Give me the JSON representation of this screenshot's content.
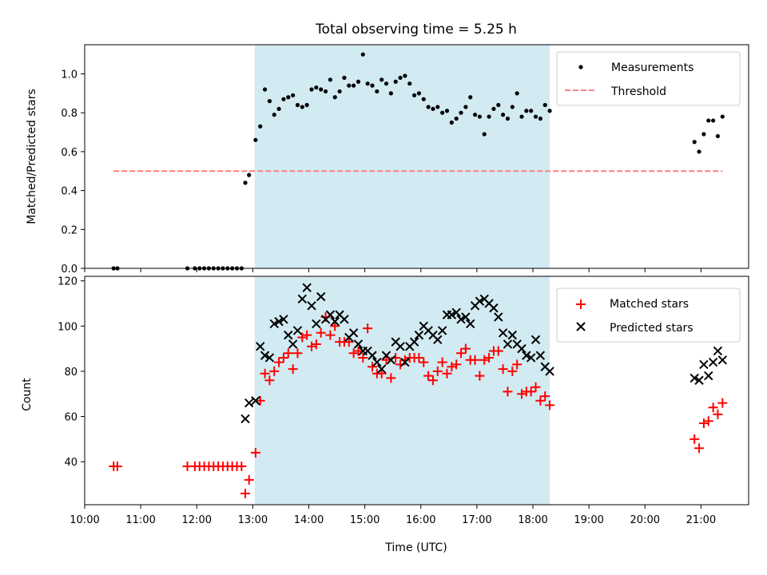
{
  "chart_data": [
    {
      "type": "scatter",
      "title": "Total observing time = 5.25 h",
      "xlabel": "",
      "ylabel": "Matched/Predicted stars",
      "xlim": [
        "10:00",
        "21:51"
      ],
      "ylim": [
        0,
        1.15
      ],
      "y_ticks": [
        "0.0",
        "0.2",
        "0.4",
        "0.6",
        "0.8",
        "1.0"
      ],
      "grid": false,
      "legend_position": "top-right",
      "observing_window": {
        "start": "13:02",
        "end": "18:18",
        "color": "#add8e6"
      },
      "series": [
        {
          "name": "Measurements",
          "marker": "dot",
          "color": "#000000",
          "points": [
            [
              "10:31",
              0.0
            ],
            [
              "10:35",
              0.0
            ],
            [
              "11:50",
              0.0
            ],
            [
              "11:58",
              0.0
            ],
            [
              "12:03",
              0.0
            ],
            [
              "12:08",
              0.0
            ],
            [
              "12:13",
              0.0
            ],
            [
              "12:18",
              0.0
            ],
            [
              "12:23",
              0.0
            ],
            [
              "12:28",
              0.0
            ],
            [
              "12:33",
              0.0
            ],
            [
              "12:38",
              0.0
            ],
            [
              "12:43",
              0.0
            ],
            [
              "12:48",
              0.0
            ],
            [
              "12:52",
              0.44
            ],
            [
              "12:56",
              0.48
            ],
            [
              "13:03",
              0.66
            ],
            [
              "13:08",
              0.73
            ],
            [
              "13:13",
              0.92
            ],
            [
              "13:18",
              0.86
            ],
            [
              "13:23",
              0.79
            ],
            [
              "13:28",
              0.82
            ],
            [
              "13:33",
              0.87
            ],
            [
              "13:38",
              0.88
            ],
            [
              "13:43",
              0.89
            ],
            [
              "13:48",
              0.84
            ],
            [
              "13:53",
              0.83
            ],
            [
              "13:58",
              0.84
            ],
            [
              "14:03",
              0.92
            ],
            [
              "14:08",
              0.93
            ],
            [
              "14:13",
              0.92
            ],
            [
              "14:18",
              0.91
            ],
            [
              "14:23",
              0.97
            ],
            [
              "14:28",
              0.88
            ],
            [
              "14:33",
              0.91
            ],
            [
              "14:38",
              0.98
            ],
            [
              "14:43",
              0.94
            ],
            [
              "14:48",
              0.94
            ],
            [
              "14:53",
              0.96
            ],
            [
              "14:58",
              1.1
            ],
            [
              "15:03",
              0.95
            ],
            [
              "15:08",
              0.94
            ],
            [
              "15:13",
              0.91
            ],
            [
              "15:18",
              0.97
            ],
            [
              "15:23",
              0.95
            ],
            [
              "15:28",
              0.9
            ],
            [
              "15:33",
              0.96
            ],
            [
              "15:38",
              0.98
            ],
            [
              "15:43",
              0.99
            ],
            [
              "15:48",
              0.95
            ],
            [
              "15:53",
              0.89
            ],
            [
              "15:58",
              0.9
            ],
            [
              "16:03",
              0.87
            ],
            [
              "16:08",
              0.83
            ],
            [
              "16:13",
              0.82
            ],
            [
              "16:18",
              0.83
            ],
            [
              "16:23",
              0.8
            ],
            [
              "16:28",
              0.81
            ],
            [
              "16:33",
              0.75
            ],
            [
              "16:38",
              0.77
            ],
            [
              "16:43",
              0.8
            ],
            [
              "16:48",
              0.83
            ],
            [
              "16:53",
              0.88
            ],
            [
              "16:58",
              0.79
            ],
            [
              "17:03",
              0.78
            ],
            [
              "17:08",
              0.69
            ],
            [
              "17:13",
              0.78
            ],
            [
              "17:18",
              0.82
            ],
            [
              "17:23",
              0.84
            ],
            [
              "17:28",
              0.79
            ],
            [
              "17:33",
              0.77
            ],
            [
              "17:38",
              0.83
            ],
            [
              "17:43",
              0.9
            ],
            [
              "17:48",
              0.78
            ],
            [
              "17:53",
              0.81
            ],
            [
              "17:58",
              0.81
            ],
            [
              "18:03",
              0.78
            ],
            [
              "18:08",
              0.77
            ],
            [
              "18:13",
              0.84
            ],
            [
              "18:18",
              0.81
            ],
            [
              "20:53",
              0.65
            ],
            [
              "20:58",
              0.6
            ],
            [
              "21:03",
              0.69
            ],
            [
              "21:08",
              0.76
            ],
            [
              "21:13",
              0.76
            ],
            [
              "21:18",
              0.68
            ],
            [
              "21:23",
              0.78
            ]
          ]
        },
        {
          "name": "Threshold",
          "marker": "dashed-line",
          "color": "#ff7f7f",
          "points": [
            [
              "10:31",
              0.5
            ],
            [
              "21:23",
              0.5
            ]
          ]
        }
      ]
    },
    {
      "type": "scatter",
      "title": "",
      "xlabel": "Time (UTC)",
      "ylabel": "Count",
      "xlim": [
        "10:00",
        "21:51"
      ],
      "ylim": [
        21,
        122
      ],
      "y_ticks": [
        "40",
        "60",
        "80",
        "100",
        "120"
      ],
      "x_ticks": [
        "10:00",
        "11:00",
        "12:00",
        "13:00",
        "14:00",
        "15:00",
        "16:00",
        "17:00",
        "18:00",
        "19:00",
        "20:00",
        "21:00"
      ],
      "grid": false,
      "legend_position": "top-right",
      "observing_window": {
        "start": "13:02",
        "end": "18:18",
        "color": "#add8e6"
      },
      "series": [
        {
          "name": "Matched stars",
          "marker": "plus",
          "color": "#ff0000",
          "points": [
            [
              "10:31",
              38
            ],
            [
              "10:35",
              38
            ],
            [
              "11:50",
              38
            ],
            [
              "11:58",
              38
            ],
            [
              "12:03",
              38
            ],
            [
              "12:08",
              38
            ],
            [
              "12:13",
              38
            ],
            [
              "12:18",
              38
            ],
            [
              "12:23",
              38
            ],
            [
              "12:28",
              38
            ],
            [
              "12:33",
              38
            ],
            [
              "12:38",
              38
            ],
            [
              "12:43",
              38
            ],
            [
              "12:48",
              38
            ],
            [
              "12:52",
              26
            ],
            [
              "12:56",
              32
            ],
            [
              "13:03",
              44
            ],
            [
              "13:08",
              67
            ],
            [
              "13:13",
              79
            ],
            [
              "13:18",
              76
            ],
            [
              "13:23",
              80
            ],
            [
              "13:28",
              84
            ],
            [
              "13:33",
              86
            ],
            [
              "13:38",
              88
            ],
            [
              "13:43",
              81
            ],
            [
              "13:48",
              88
            ],
            [
              "13:53",
              95
            ],
            [
              "13:58",
              96
            ],
            [
              "14:03",
              91
            ],
            [
              "14:08",
              92
            ],
            [
              "14:13",
              97
            ],
            [
              "14:18",
              104
            ],
            [
              "14:23",
              96
            ],
            [
              "14:28",
              100
            ],
            [
              "14:33",
              93
            ],
            [
              "14:38",
              93
            ],
            [
              "14:43",
              93
            ],
            [
              "14:48",
              88
            ],
            [
              "14:53",
              89
            ],
            [
              "14:58",
              86
            ],
            [
              "15:03",
              99
            ],
            [
              "15:08",
              82
            ],
            [
              "15:13",
              79
            ],
            [
              "15:18",
              79
            ],
            [
              "15:23",
              85
            ],
            [
              "15:28",
              77
            ],
            [
              "15:33",
              86
            ],
            [
              "15:38",
              83
            ],
            [
              "15:43",
              85
            ],
            [
              "15:48",
              86
            ],
            [
              "15:53",
              86
            ],
            [
              "15:58",
              86
            ],
            [
              "16:03",
              84
            ],
            [
              "16:08",
              78
            ],
            [
              "16:13",
              76
            ],
            [
              "16:18",
              80
            ],
            [
              "16:23",
              84
            ],
            [
              "16:28",
              79
            ],
            [
              "16:33",
              82
            ],
            [
              "16:38",
              83
            ],
            [
              "16:43",
              88
            ],
            [
              "16:48",
              90
            ],
            [
              "16:53",
              85
            ],
            [
              "16:58",
              85
            ],
            [
              "17:03",
              78
            ],
            [
              "17:08",
              85
            ],
            [
              "17:13",
              86
            ],
            [
              "17:18",
              89
            ],
            [
              "17:23",
              89
            ],
            [
              "17:28",
              81
            ],
            [
              "17:33",
              71
            ],
            [
              "17:38",
              80
            ],
            [
              "17:43",
              83
            ],
            [
              "17:48",
              70
            ],
            [
              "17:53",
              71
            ],
            [
              "17:58",
              71
            ],
            [
              "18:03",
              73
            ],
            [
              "18:08",
              67
            ],
            [
              "18:13",
              69
            ],
            [
              "18:18",
              65
            ],
            [
              "20:53",
              50
            ],
            [
              "20:58",
              46
            ],
            [
              "21:03",
              57
            ],
            [
              "21:08",
              58
            ],
            [
              "21:13",
              64
            ],
            [
              "21:18",
              61
            ],
            [
              "21:23",
              66
            ]
          ]
        },
        {
          "name": "Predicted stars",
          "marker": "x",
          "color": "#000000",
          "points": [
            [
              "12:52",
              59
            ],
            [
              "12:56",
              66
            ],
            [
              "13:03",
              67
            ],
            [
              "13:08",
              91
            ],
            [
              "13:13",
              87
            ],
            [
              "13:18",
              86
            ],
            [
              "13:23",
              101
            ],
            [
              "13:28",
              102
            ],
            [
              "13:33",
              103
            ],
            [
              "13:38",
              96
            ],
            [
              "13:43",
              92
            ],
            [
              "13:48",
              98
            ],
            [
              "13:53",
              112
            ],
            [
              "13:58",
              117
            ],
            [
              "14:03",
              109
            ],
            [
              "14:08",
              101
            ],
            [
              "14:13",
              113
            ],
            [
              "14:18",
              103
            ],
            [
              "14:23",
              105
            ],
            [
              "14:28",
              102
            ],
            [
              "14:33",
              105
            ],
            [
              "14:38",
              103
            ],
            [
              "14:43",
              95
            ],
            [
              "14:48",
              97
            ],
            [
              "14:53",
              92
            ],
            [
              "14:58",
              89
            ],
            [
              "15:03",
              89
            ],
            [
              "15:08",
              87
            ],
            [
              "15:13",
              84
            ],
            [
              "15:18",
              81
            ],
            [
              "15:23",
              87
            ],
            [
              "15:28",
              85
            ],
            [
              "15:33",
              93
            ],
            [
              "15:38",
              91
            ],
            [
              "15:43",
              84
            ],
            [
              "15:48",
              91
            ],
            [
              "15:53",
              93
            ],
            [
              "15:58",
              96
            ],
            [
              "16:03",
              100
            ],
            [
              "16:08",
              98
            ],
            [
              "16:13",
              96
            ],
            [
              "16:18",
              94
            ],
            [
              "16:23",
              98
            ],
            [
              "16:28",
              105
            ],
            [
              "16:33",
              105
            ],
            [
              "16:38",
              106
            ],
            [
              "16:43",
              103
            ],
            [
              "16:48",
              104
            ],
            [
              "16:53",
              101
            ],
            [
              "16:58",
              109
            ],
            [
              "17:03",
              111
            ],
            [
              "17:08",
              112
            ],
            [
              "17:13",
              110
            ],
            [
              "17:18",
              108
            ],
            [
              "17:23",
              104
            ],
            [
              "17:28",
              97
            ],
            [
              "17:33",
              92
            ],
            [
              "17:38",
              96
            ],
            [
              "17:43",
              92
            ],
            [
              "17:48",
              90
            ],
            [
              "17:53",
              87
            ],
            [
              "17:58",
              86
            ],
            [
              "18:03",
              94
            ],
            [
              "18:08",
              87
            ],
            [
              "18:13",
              82
            ],
            [
              "18:18",
              80
            ],
            [
              "20:53",
              77
            ],
            [
              "20:58",
              76
            ],
            [
              "21:03",
              83
            ],
            [
              "21:08",
              78
            ],
            [
              "21:13",
              84
            ],
            [
              "21:18",
              89
            ],
            [
              "21:23",
              85
            ]
          ]
        }
      ]
    }
  ]
}
